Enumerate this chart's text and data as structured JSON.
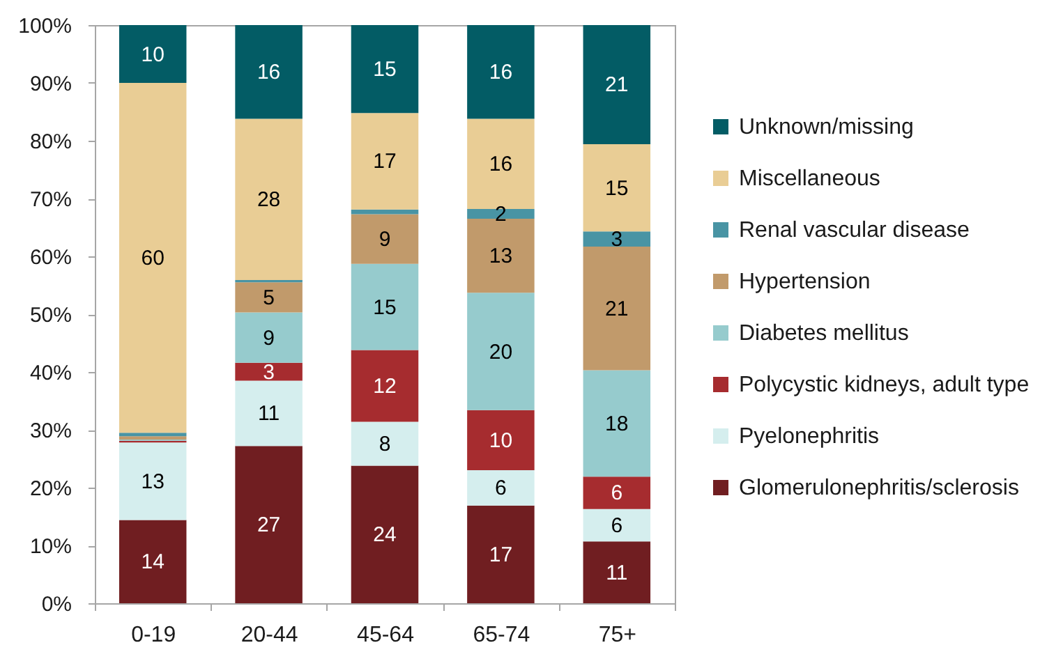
{
  "chart_data": {
    "type": "bar",
    "stacked": true,
    "categories": [
      "0-19",
      "20-44",
      "45-64",
      "65-74",
      "75+"
    ],
    "series": [
      {
        "name": "Glomerulonephritis/sclerosis",
        "color": "#701e21",
        "values": [
          14.4,
          27.2,
          23.8,
          16.9,
          10.7
        ],
        "value_labels": [
          "14",
          "27",
          "24",
          "17",
          "11"
        ]
      },
      {
        "name": "Pyelonephritis",
        "color": "#d5eeee",
        "values": [
          13.4,
          11.3,
          7.6,
          6.1,
          5.6
        ],
        "value_labels": [
          "13",
          "11",
          "8",
          "6",
          "6"
        ]
      },
      {
        "name": "Polycystic kidneys, adult type",
        "color": "#a62c2f",
        "values": [
          0.3,
          3.1,
          12.4,
          10.4,
          5.6
        ],
        "value_labels": [
          null,
          "3",
          "12",
          "10",
          "6"
        ]
      },
      {
        "name": "Diabetes mellitus",
        "color": "#96cbcd",
        "values": [
          0.2,
          8.7,
          14.9,
          20.3,
          18.4
        ],
        "value_labels": [
          null,
          "9",
          "15",
          "20",
          "18"
        ]
      },
      {
        "name": "Hypertension",
        "color": "#c19a6b",
        "values": [
          0.6,
          5.2,
          8.6,
          12.8,
          21.4
        ],
        "value_labels": [
          null,
          "5",
          "9",
          "13",
          "21"
        ]
      },
      {
        "name": "Renal vascular disease",
        "color": "#4994a4",
        "values": [
          0.6,
          0.4,
          0.8,
          1.7,
          2.6
        ],
        "value_labels": [
          null,
          null,
          null,
          "2",
          "3"
        ]
      },
      {
        "name": "Miscellaneous",
        "color": "#e9cd95",
        "values": [
          60.5,
          27.9,
          16.7,
          15.6,
          15.1
        ],
        "value_labels": [
          "60",
          "28",
          "17",
          "16",
          "15"
        ]
      },
      {
        "name": "Unknown/missing",
        "color": "#035c65",
        "values": [
          10.0,
          16.2,
          15.2,
          16.2,
          20.6
        ],
        "value_labels": [
          "10",
          "16",
          "15",
          "16",
          "21"
        ]
      }
    ],
    "ylim": [
      0,
      100
    ],
    "yticks": [
      {
        "value": 0,
        "label": "0%"
      },
      {
        "value": 10,
        "label": "10%"
      },
      {
        "value": 20,
        "label": "20%"
      },
      {
        "value": 30,
        "label": "30%"
      },
      {
        "value": 40,
        "label": "40%"
      },
      {
        "value": 50,
        "label": "50%"
      },
      {
        "value": 60,
        "label": "60%"
      },
      {
        "value": 70,
        "label": "70%"
      },
      {
        "value": 80,
        "label": "80%"
      },
      {
        "value": 90,
        "label": "90%"
      },
      {
        "value": 100,
        "label": "100%"
      }
    ],
    "grid": false,
    "legend": "right"
  }
}
